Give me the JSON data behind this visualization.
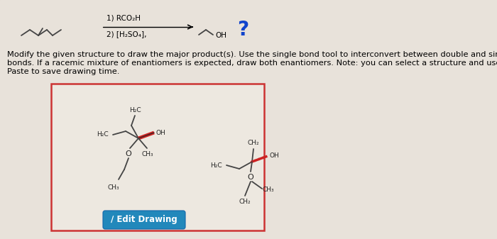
{
  "bg_color": "#cdc8c0",
  "panel_bg": "#e8e2da",
  "box_bg": "#ede8e0",
  "box_border": "#cc3333",
  "reagent_line1": "1) RCO₂H",
  "reagent_line2": "2) [H₂SO₄],",
  "oh_label": "OH",
  "question_mark": "?",
  "instruction_line1": "Modify the given structure to draw the major product(s). Use the single bond tool to interconvert between double and single",
  "instruction_line2": "bonds. If a racemic mixture of enantiomers is expected, draw both enantiomers. Note: you can select a structure and use Copy and",
  "instruction_line3": "Paste to save drawing time.",
  "edit_btn_color": "#2288bb",
  "edit_btn_text": "∕ Edit Drawing",
  "line_color": "#444444",
  "red_color": "#cc2222",
  "label_color": "#222222",
  "font_size_small": 6.5,
  "font_size_instr": 8.2,
  "font_size_qmark": 20
}
